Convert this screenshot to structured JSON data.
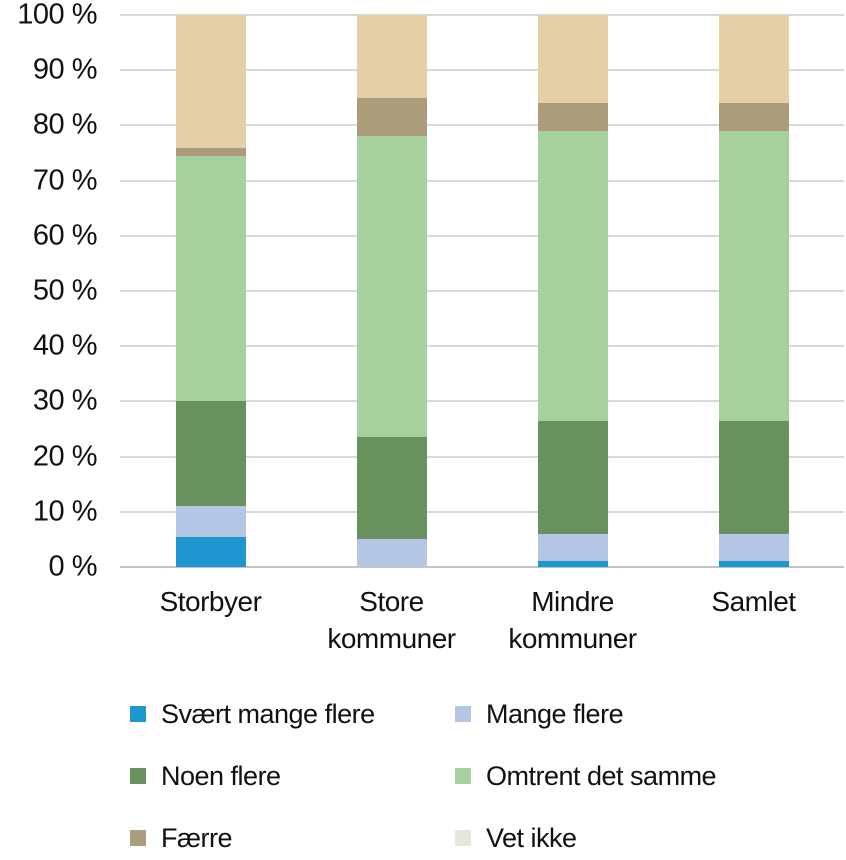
{
  "chart_data": {
    "type": "bar",
    "stacked": true,
    "unit": "percent",
    "title": "",
    "xlabel": "",
    "ylabel": "",
    "ylim": [
      0,
      100
    ],
    "grid": true,
    "legend_position": "bottom",
    "grid_color": "#d9d9d9",
    "axis_color": "#c3c3c3",
    "text_color": "#111111",
    "yticks": [
      "100 %",
      "90 %",
      "80 %",
      "70 %",
      "60 %",
      "50 %",
      "40 %",
      "30 %",
      "20 %",
      "10 %",
      "0 %"
    ],
    "categories": [
      "Storbyer",
      "Store kommuner",
      "Mindre kommuner",
      "Samlet"
    ],
    "series": [
      {
        "name": "Svært mange flere",
        "color": "#1e96cf",
        "values": [
          5.5,
          0,
          1,
          1
        ]
      },
      {
        "name": "Mange flere",
        "color": "#b4c6e4",
        "values": [
          5.5,
          5,
          5,
          5
        ]
      },
      {
        "name": "Noen flere",
        "color": "#68915e",
        "values": [
          19,
          18.5,
          20.5,
          20.5
        ]
      },
      {
        "name": "Omtrent det samme",
        "color": "#a8cf9e",
        "values": [
          44.5,
          54.5,
          52.5,
          52.5
        ]
      },
      {
        "name": "Færre",
        "color": "#ab9d7b",
        "values": [
          1.5,
          7,
          5,
          5
        ]
      },
      {
        "name": "Vet ikke",
        "color": "#e4cfa7",
        "legend_color": "#e6e4dd",
        "values": [
          24,
          15,
          16,
          16
        ]
      }
    ]
  }
}
